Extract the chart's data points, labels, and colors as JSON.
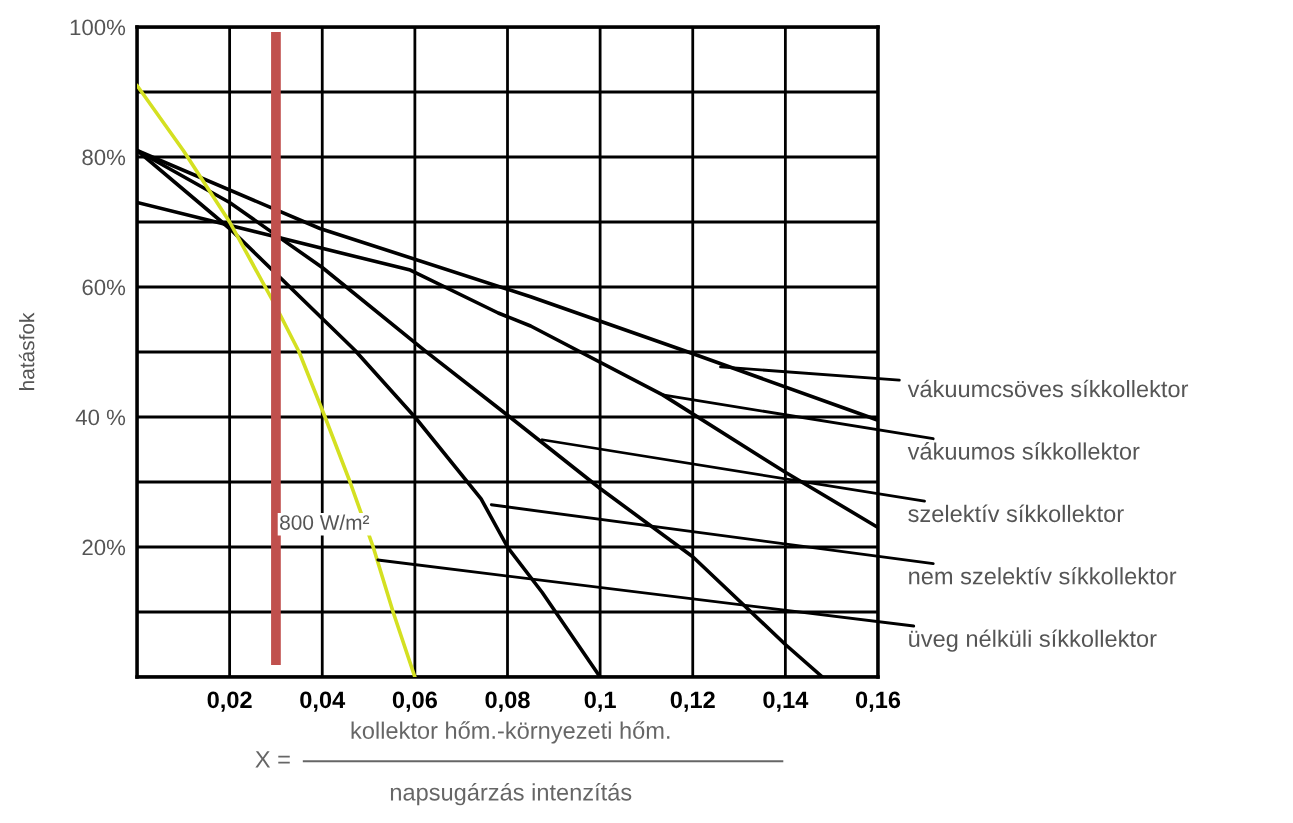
{
  "chart_data": {
    "type": "line",
    "ylabel": "hatásfok",
    "xlim": [
      0,
      0.16
    ],
    "ylim": [
      0,
      100
    ],
    "xticks": [
      {
        "value": 0,
        "label": null
      },
      {
        "value": 0.02,
        "label": "0,02"
      },
      {
        "value": 0.04,
        "label": "0,04"
      },
      {
        "value": 0.06,
        "label": "0,06"
      },
      {
        "value": 0.08,
        "label": "0,08"
      },
      {
        "value": 0.1,
        "label": "0,1"
      },
      {
        "value": 0.12,
        "label": "0,12"
      },
      {
        "value": 0.14,
        "label": "0,14"
      },
      {
        "value": 0.16,
        "label": "0,16"
      }
    ],
    "yticks": [
      {
        "value": 0,
        "label": null
      },
      {
        "value": 10,
        "label": null
      },
      {
        "value": 20,
        "label": "20%"
      },
      {
        "value": 30,
        "label": null
      },
      {
        "value": 40,
        "label": "40 %"
      },
      {
        "value": 50,
        "label": null
      },
      {
        "value": 60,
        "label": "60%"
      },
      {
        "value": 70,
        "label": null
      },
      {
        "value": 80,
        "label": "80%"
      },
      {
        "value": 90,
        "label": null
      },
      {
        "value": 100,
        "label": "100%"
      }
    ],
    "grid": true,
    "marker": "none",
    "line_style": "solid",
    "series": [
      {
        "color": "#000000",
        "x": [
          0,
          0.0395,
          0.085,
          0.119,
          0.16
        ],
        "values": [
          81,
          69,
          58.5,
          50,
          39.5
        ]
      },
      {
        "color": "#000000",
        "x": [
          0,
          0.059,
          0.078,
          0.085,
          0.1135,
          0.14,
          0.16
        ],
        "values": [
          73,
          62.6,
          56,
          54,
          43.4,
          31.5,
          23
        ]
      },
      {
        "color": "#000000",
        "x": [
          0,
          0.02,
          0.04,
          0.062,
          0.0805,
          0.1,
          0.12,
          0.14,
          0.148
        ],
        "values": [
          81,
          73,
          63,
          50.3,
          40,
          29,
          18.5,
          5,
          0
        ]
      },
      {
        "color": "#000000",
        "x": [
          0,
          0.02,
          0.047,
          0.06,
          0.0743,
          0.08,
          0.0875,
          0.1
        ],
        "values": [
          81,
          69,
          50.3,
          40,
          27.4,
          20,
          13,
          0
        ]
      },
      {
        "color": "#d4e021",
        "x": [
          0,
          0.01,
          0.02,
          0.03,
          0.035,
          0.0406,
          0.046,
          0.051,
          0.0553,
          0.06
        ],
        "values": [
          91,
          81,
          70,
          57,
          50,
          40,
          30,
          20,
          10,
          0
        ]
      }
    ],
    "ref_lines": [
      {
        "axis": "x",
        "value": 0.03,
        "label": "800 W/m²",
        "color": "#c0504d"
      }
    ],
    "annotations": [
      {
        "text": "vákuumcsöves síkkollektor",
        "x": 0.126,
        "y": 47.7
      },
      {
        "text": "vákuumos síkkollektor",
        "x": 0.1135,
        "y": 43.4
      },
      {
        "text": "szelektív síkkollektor",
        "x": 0.0875,
        "y": 36.5
      },
      {
        "text": "nem szelektív síkkollektor",
        "x": 0.0765,
        "y": 26.5
      },
      {
        "text": "üveg nélküli síkkollektor",
        "x": 0.052,
        "y": 18
      },
      "X =",
      "kollektor hőm.-környezeti hőm.",
      "napsugárzás intenzítás"
    ]
  }
}
